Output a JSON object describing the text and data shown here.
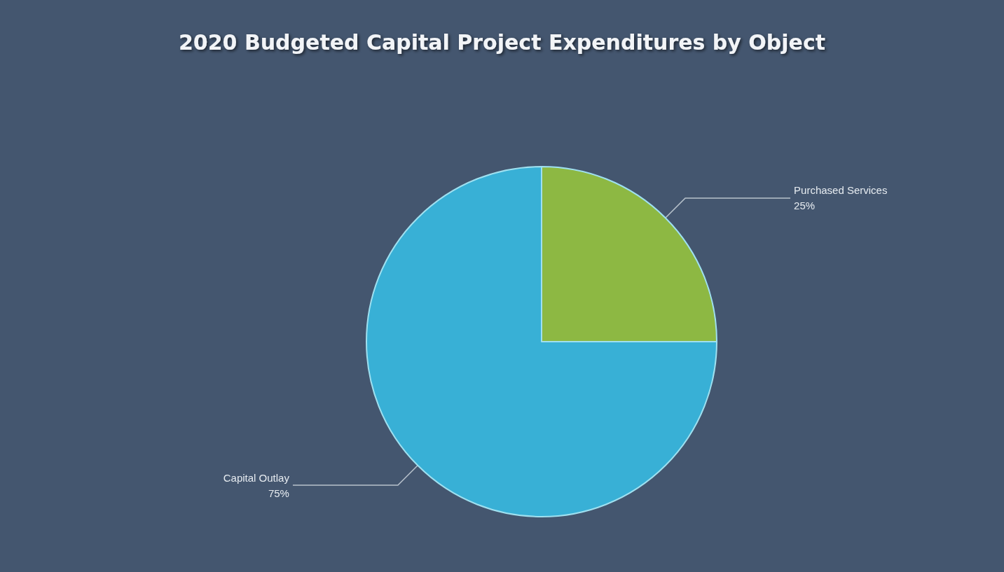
{
  "chart_data": {
    "type": "pie",
    "title": "2020 Budgeted Capital Project Expenditures by Object",
    "categories": [
      "Purchased Services",
      "Capital Outlay"
    ],
    "values": [
      25,
      75
    ],
    "colors": [
      "#8db843",
      "#38b0d6"
    ],
    "value_labels": [
      "25%",
      "75%"
    ]
  }
}
